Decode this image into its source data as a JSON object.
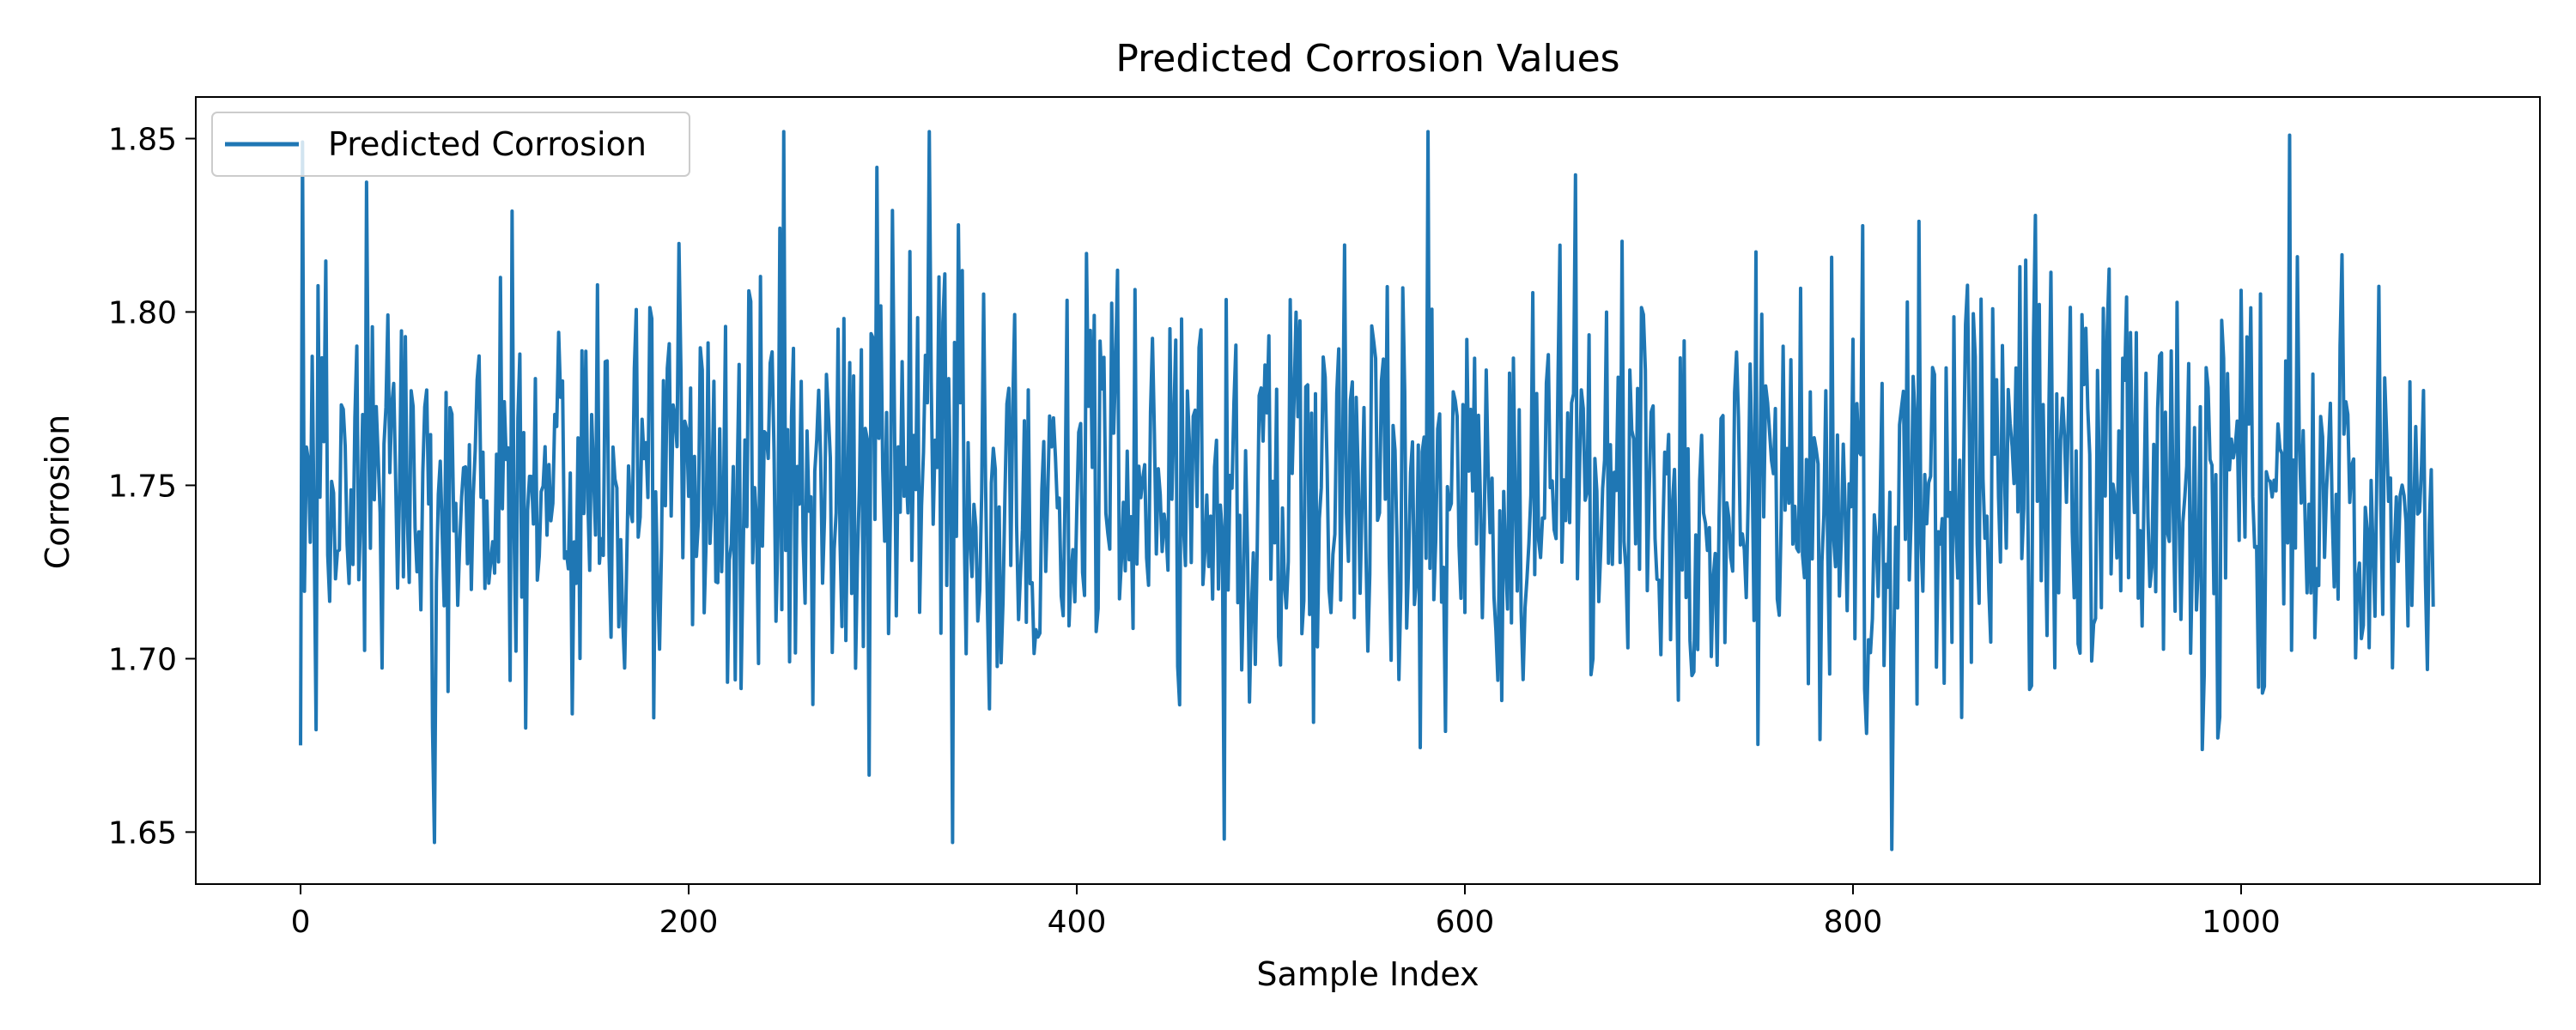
{
  "chart_data": {
    "type": "line",
    "title": "Predicted Corrosion Values",
    "xlabel": "Sample Index",
    "ylabel": "Corrosion",
    "xlim": [
      -54,
      1154
    ],
    "ylim": [
      1.635,
      1.862
    ],
    "xticks": [
      0,
      200,
      400,
      600,
      800,
      1000
    ],
    "xtick_labels": [
      "0",
      "200",
      "400",
      "600",
      "800",
      "1000"
    ],
    "yticks": [
      1.65,
      1.7,
      1.75,
      1.8,
      1.85
    ],
    "ytick_labels": [
      "1.65",
      "1.70",
      "1.75",
      "1.80",
      "1.85"
    ],
    "legend_position": "top-left",
    "grid": false,
    "color": "#1f77b4",
    "series": [
      {
        "name": "Predicted Corrosion",
        "n_points": 1100,
        "start_value": 1.675,
        "end_value": 1.715,
        "min_value": 1.645,
        "max_value": 1.852,
        "approx_mean": 1.75,
        "notable_points": [
          {
            "x": 1,
            "y": 1.849
          },
          {
            "x": 69,
            "y": 1.647
          },
          {
            "x": 249,
            "y": 1.852
          },
          {
            "x": 324,
            "y": 1.852
          },
          {
            "x": 336,
            "y": 1.647
          },
          {
            "x": 476,
            "y": 1.648
          },
          {
            "x": 581,
            "y": 1.852
          },
          {
            "x": 820,
            "y": 1.645
          },
          {
            "x": 1025,
            "y": 1.851
          }
        ]
      }
    ]
  }
}
